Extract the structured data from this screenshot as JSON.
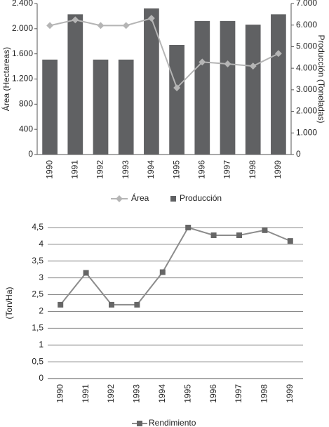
{
  "chart_data": [
    {
      "type": "bar-line",
      "y_label": "Área (Hectareas)",
      "y2_label": "Producción (Toneladas)",
      "categories": [
        "1990",
        "1991",
        "1992",
        "1993",
        "1994",
        "1995",
        "1996",
        "1997",
        "1998",
        "1999"
      ],
      "series": [
        {
          "name": "Área",
          "type": "line",
          "color": "#b5b5b5",
          "values": [
            2050,
            2140,
            2050,
            2050,
            2165,
            1060,
            1470,
            1440,
            1405,
            1605
          ]
        },
        {
          "name": "Producción",
          "type": "bar",
          "axis": "y2",
          "color": "#606163",
          "values": [
            4400,
            6500,
            4400,
            4400,
            6770,
            5080,
            6190,
            6190,
            6020,
            6500
          ]
        }
      ],
      "ylim": [
        0,
        2400
      ],
      "yticks": [
        0,
        400,
        800,
        {
          "value": 1200,
          "label": "1.200"
        },
        {
          "value": 1600,
          "label": "1.600"
        },
        {
          "value": 2000,
          "label": "2.000"
        },
        {
          "value": 2400,
          "label": "2.400"
        }
      ],
      "y2lim": [
        0,
        7000
      ],
      "y2ticks": [
        0,
        {
          "value": 1000,
          "label": "1.000"
        },
        {
          "value": 2000,
          "label": "2.000"
        },
        {
          "value": 3000,
          "label": "3.000"
        },
        {
          "value": 4000,
          "label": "4.000"
        },
        {
          "value": 5000,
          "label": "5.000"
        },
        {
          "value": 6000,
          "label": "6.000"
        },
        {
          "value": 7000,
          "label": "7.000"
        }
      ],
      "grid": false
    },
    {
      "type": "line",
      "y_label": "(Ton/Ha)",
      "categories": [
        "1990",
        "1991",
        "1992",
        "1993",
        "1994",
        "1995",
        "1996",
        "1997",
        "1998",
        "1999"
      ],
      "series": [
        {
          "name": "Rendimiento",
          "color": "#8c8c8c",
          "marker_color": "#666666",
          "values": [
            2.2,
            3.15,
            2.2,
            2.2,
            3.17,
            4.5,
            4.27,
            4.27,
            4.42,
            4.1
          ]
        }
      ],
      "ylim": [
        0,
        4.5
      ],
      "yticks": [
        0,
        {
          "value": 0.5,
          "label": "0,5"
        },
        1,
        {
          "value": 1.5,
          "label": "1,5"
        },
        2,
        {
          "value": 2.5,
          "label": "2,5"
        },
        3,
        {
          "value": 3.5,
          "label": "3,5"
        },
        4,
        {
          "value": 4.5,
          "label": "4,5"
        }
      ],
      "grid": true
    }
  ]
}
